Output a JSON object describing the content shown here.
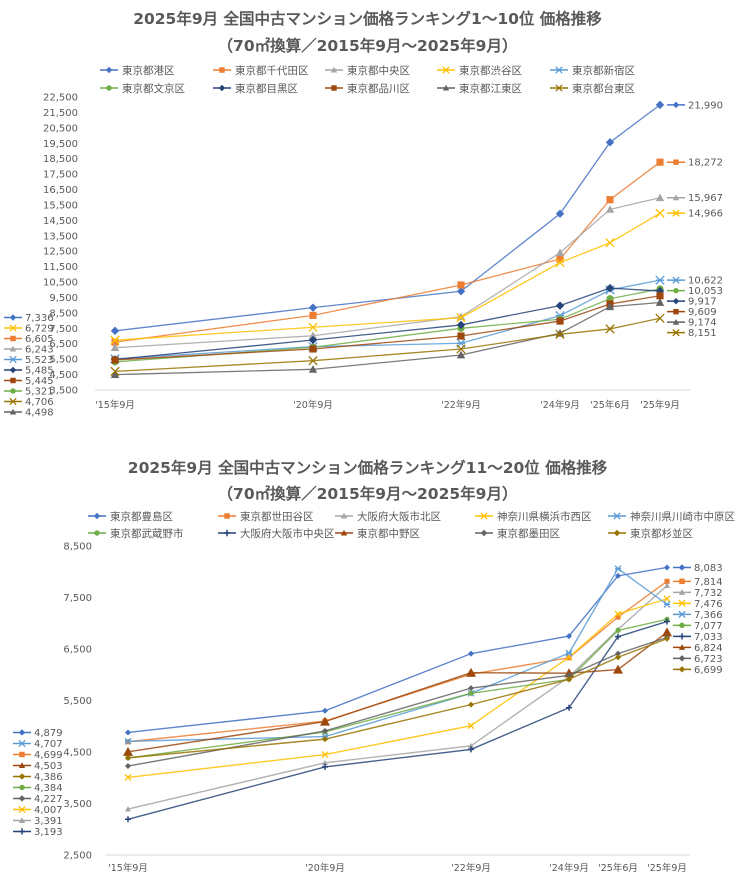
{
  "chart_data": [
    {
      "type": "line",
      "title": "2025年9月  全国中古マンション価格ランキング1～10位  価格推移",
      "subtitle": "（70㎡換算／2015年9月～2025年9月）",
      "xlabel": "",
      "ylabel": "",
      "categories": [
        "'15年9月",
        "'20年9月",
        "'22年9月",
        "'24年9月",
        "'25年6月",
        "'25年9月"
      ],
      "ylim": [
        3500,
        22500
      ],
      "ytick_step": 1000,
      "grid": false,
      "legend_position": "top",
      "series": [
        {
          "name": "東京都港区",
          "color": "#4472C4",
          "marker": "diamond",
          "values": [
            7336,
            8840,
            9900,
            14930,
            19560,
            21990
          ]
        },
        {
          "name": "東京都千代田区",
          "color": "#ED7D31",
          "marker": "square",
          "values": [
            6605,
            8340,
            10310,
            11990,
            15840,
            18272
          ]
        },
        {
          "name": "東京都中央区",
          "color": "#A5A5A5",
          "marker": "triangle",
          "values": [
            6243,
            7020,
            8250,
            12400,
            15210,
            15967
          ]
        },
        {
          "name": "東京都渋谷区",
          "color": "#FFC000",
          "marker": "x",
          "values": [
            6729,
            7570,
            8190,
            11760,
            13050,
            14966
          ]
        },
        {
          "name": "東京都新宿区",
          "color": "#5B9BD5",
          "marker": "star",
          "values": [
            5523,
            6310,
            6530,
            8320,
            9990,
            10622
          ]
        },
        {
          "name": "東京都文京区",
          "color": "#70AD47",
          "marker": "circle",
          "values": [
            5321,
            6270,
            7500,
            8090,
            9420,
            10053
          ]
        },
        {
          "name": "東京都目黒区",
          "color": "#264478",
          "marker": "diamond",
          "values": [
            5485,
            6740,
            7720,
            8970,
            10110,
            9917
          ]
        },
        {
          "name": "東京都品川区",
          "color": "#9E480E",
          "marker": "square",
          "values": [
            5445,
            6160,
            7000,
            7970,
            9080,
            9609
          ]
        },
        {
          "name": "東京都江東区",
          "color": "#636363",
          "marker": "triangle",
          "values": [
            4498,
            4840,
            5770,
            7180,
            8900,
            9174
          ]
        },
        {
          "name": "東京都台東区",
          "color": "#997300",
          "marker": "x",
          "values": [
            4706,
            5400,
            6160,
            7110,
            7460,
            8151
          ]
        }
      ]
    },
    {
      "type": "line",
      "title": "2025年9月  全国中古マンション価格ランキング11～20位  価格推移",
      "subtitle": "（70㎡換算／2015年9月～2025年9月）",
      "xlabel": "",
      "ylabel": "",
      "categories": [
        "'15年9月",
        "'20年9月",
        "'22年9月",
        "'24年9月",
        "'25年6月",
        "'25年9月"
      ],
      "ylim": [
        2500,
        8500
      ],
      "ytick_step": 1000,
      "grid": false,
      "legend_position": "top",
      "series": [
        {
          "name": "東京都豊島区",
          "color": "#4472C4",
          "marker": "diamond",
          "values": [
            4879,
            5300,
            6410,
            6750,
            7920,
            8083
          ]
        },
        {
          "name": "東京都世田谷区",
          "color": "#ED7D31",
          "marker": "square",
          "values": [
            4699,
            5100,
            6010,
            6330,
            7120,
            7814
          ]
        },
        {
          "name": "大阪府大阪市北区",
          "color": "#A5A5A5",
          "marker": "triangle",
          "values": [
            3391,
            4290,
            4620,
            5960,
            6880,
            7732
          ]
        },
        {
          "name": "神奈川県横浜市西区",
          "color": "#FFC000",
          "marker": "x",
          "values": [
            4007,
            4450,
            5010,
            6340,
            7180,
            7476
          ]
        },
        {
          "name": "神奈川県川崎市中原区",
          "color": "#5B9BD5",
          "marker": "star",
          "values": [
            4707,
            4800,
            5640,
            6420,
            8060,
            7366
          ]
        },
        {
          "name": "東京都武蔵野市",
          "color": "#70AD47",
          "marker": "circle",
          "values": [
            4384,
            4890,
            5640,
            5910,
            6860,
            7077
          ]
        },
        {
          "name": "大阪府大阪市中央区",
          "color": "#264478",
          "marker": "plus",
          "values": [
            3193,
            4210,
            4550,
            5360,
            6740,
            7033
          ]
        },
        {
          "name": "東京都中野区",
          "color": "#9E480E",
          "marker": "triangle",
          "values": [
            4503,
            5090,
            6040,
            6030,
            6100,
            6824
          ]
        },
        {
          "name": "東京都墨田区",
          "color": "#636363",
          "marker": "diamond",
          "values": [
            4227,
            4910,
            5740,
            5990,
            6410,
            6723
          ]
        },
        {
          "name": "東京都杉並区",
          "color": "#997300",
          "marker": "diamond",
          "values": [
            4386,
            4750,
            5420,
            5910,
            6340,
            6699
          ]
        }
      ]
    }
  ]
}
